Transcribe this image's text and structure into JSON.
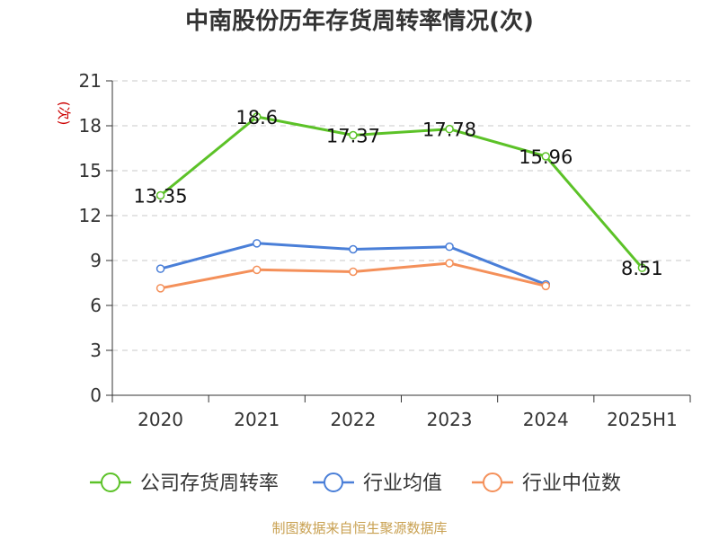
{
  "chart_data": {
    "type": "line",
    "title": "中南股份历年存货周转率情况(次)",
    "ylabel": "(次)",
    "categories": [
      "2020",
      "2021",
      "2022",
      "2023",
      "2024",
      "2025H1"
    ],
    "ylim": [
      0,
      21
    ],
    "yticks": [
      0,
      3,
      6,
      9,
      12,
      15,
      18,
      21
    ],
    "grid": true,
    "legend_position": "bottom",
    "series": [
      {
        "name": "公司存货周转率",
        "color": "#5cc228",
        "values": [
          13.35,
          18.6,
          17.37,
          17.78,
          15.96,
          8.51
        ],
        "labels": [
          "13.35",
          "18.6",
          "17.37",
          "17.78",
          "15.96",
          "8.51"
        ]
      },
      {
        "name": "行业均值",
        "color": "#4a7fd8",
        "values": [
          8.45,
          10.15,
          9.75,
          9.92,
          7.4,
          null
        ]
      },
      {
        "name": "行业中位数",
        "color": "#f4905a",
        "values": [
          7.15,
          8.38,
          8.25,
          8.82,
          7.3,
          null
        ]
      }
    ]
  },
  "source": "制图数据来自恒生聚源数据库"
}
